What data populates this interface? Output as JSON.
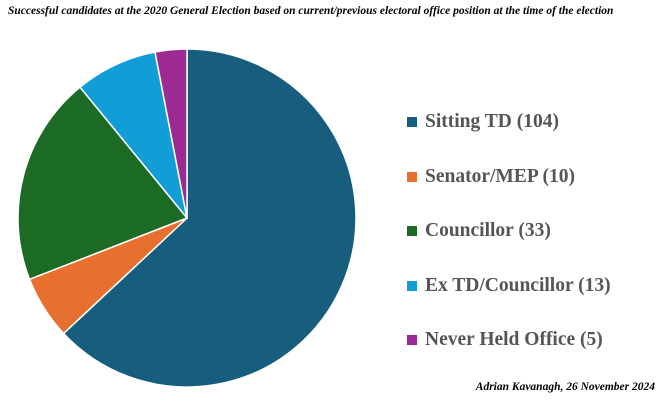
{
  "title": "Successful candidates at the 2020 General Election based on current/previous electoral office position at the time of the election",
  "credit": "Adrian Kavanagh, 26 November 2024",
  "chart_data": {
    "type": "pie",
    "title": "Successful candidates at the 2020 General Election based on current/previous electoral office position at the time of the election",
    "legend_position": "right",
    "slices": [
      {
        "label": "Sitting TD (104)",
        "value": 104,
        "color": "#175e7e"
      },
      {
        "label": "Senator/MEP (10)",
        "value": 10,
        "color": "#e77030"
      },
      {
        "label": "Councillor (33)",
        "value": 33,
        "color": "#1b6b24"
      },
      {
        "label": "Ex TD/Councillor (13)",
        "value": 13,
        "color": "#119ed7"
      },
      {
        "label": "Never Held Office (5)",
        "value": 5,
        "color": "#9d2a92"
      }
    ]
  }
}
